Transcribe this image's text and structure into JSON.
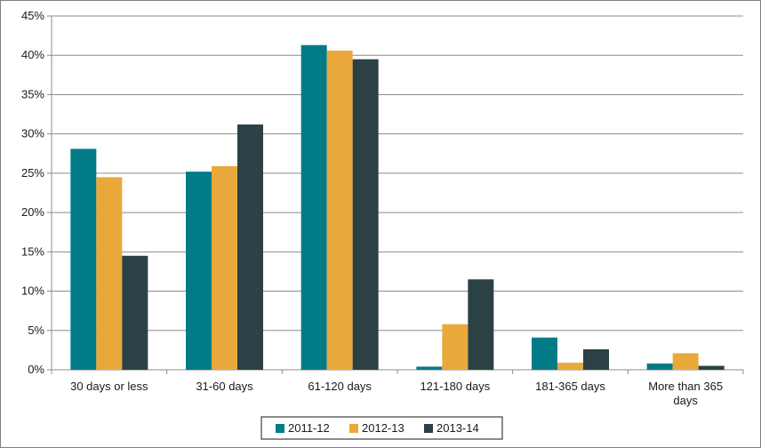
{
  "chart_data": {
    "type": "bar",
    "categories": [
      [
        "30 days or less"
      ],
      [
        "31-60 days"
      ],
      [
        "61-120 days"
      ],
      [
        "121-180 days"
      ],
      [
        "181-365 days"
      ],
      [
        "More than 365",
        "days"
      ]
    ],
    "series": [
      {
        "name": "2011-12",
        "color": "#017c86",
        "values": [
          28.1,
          25.2,
          41.3,
          0.4,
          4.1,
          0.8
        ]
      },
      {
        "name": "2012-13",
        "color": "#e9a93a",
        "values": [
          24.5,
          25.9,
          40.6,
          5.8,
          0.9,
          2.1
        ]
      },
      {
        "name": "2013-14",
        "color": "#2b4146",
        "values": [
          14.5,
          31.2,
          39.5,
          11.5,
          2.6,
          0.5
        ]
      }
    ],
    "ylim": [
      0,
      45
    ],
    "yticks": [
      "0%",
      "5%",
      "10%",
      "15%",
      "20%",
      "25%",
      "30%",
      "35%",
      "40%",
      "45%"
    ],
    "grid": true,
    "legend": "bottom"
  }
}
